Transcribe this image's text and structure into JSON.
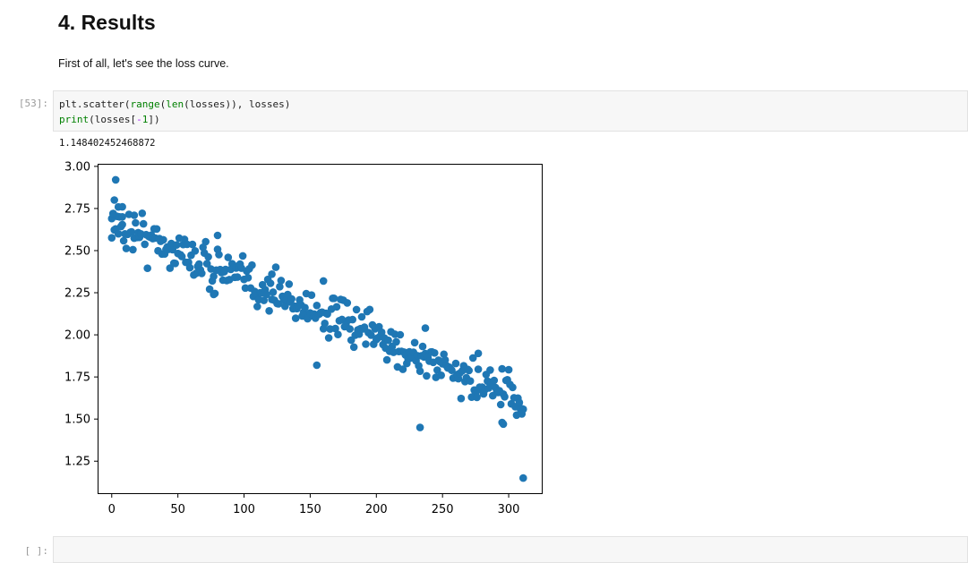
{
  "section": {
    "heading": "4. Results",
    "text": "First of all, let's see the loss curve."
  },
  "cell": {
    "prompt": "[53]:",
    "line1": {
      "a": "plt.scatter(",
      "b": "range",
      "c": "(",
      "d": "len",
      "e": "(losses)), losses)"
    },
    "line2": {
      "a": "print",
      "b": "(losses[",
      "c": "-",
      "d": "1",
      "e": "])"
    },
    "output": "1.148402452468872"
  },
  "empty_cell": {
    "prompt": "[ ]:"
  },
  "chart_data": {
    "type": "scatter",
    "xlim": [
      -10,
      325
    ],
    "ylim": [
      1.06,
      3.01
    ],
    "xticks": [
      0,
      50,
      100,
      150,
      200,
      250,
      300
    ],
    "yticks": [
      1.25,
      1.5,
      1.75,
      2.0,
      2.25,
      2.5,
      2.75,
      3.0
    ],
    "xtick_labels": [
      "0",
      "50",
      "100",
      "150",
      "200",
      "250",
      "300"
    ],
    "ytick_labels": [
      "1.25",
      "1.50",
      "1.75",
      "2.00",
      "2.25",
      "2.50",
      "2.75",
      "3.00"
    ],
    "color": "#1f77b4",
    "n_points": 312,
    "trend": {
      "start": 2.67,
      "end": 1.6
    },
    "noise": 0.065,
    "outliers": [
      {
        "x": 0,
        "y": 2.69
      },
      {
        "x": 1,
        "y": 2.72
      },
      {
        "x": 2,
        "y": 2.8
      },
      {
        "x": 3,
        "y": 2.92
      },
      {
        "x": 5,
        "y": 2.6
      },
      {
        "x": 8,
        "y": 2.76
      },
      {
        "x": 8,
        "y": 2.7
      },
      {
        "x": 17,
        "y": 2.71
      },
      {
        "x": 80,
        "y": 2.59
      },
      {
        "x": 77,
        "y": 2.24
      },
      {
        "x": 121,
        "y": 2.36
      },
      {
        "x": 155,
        "y": 1.82
      },
      {
        "x": 160,
        "y": 2.32
      },
      {
        "x": 233,
        "y": 1.45
      },
      {
        "x": 237,
        "y": 2.04
      },
      {
        "x": 277,
        "y": 1.89
      },
      {
        "x": 295,
        "y": 1.48
      },
      {
        "x": 296,
        "y": 1.47
      },
      {
        "x": 310,
        "y": 1.53
      },
      {
        "x": 311,
        "y": 1.15
      }
    ]
  }
}
